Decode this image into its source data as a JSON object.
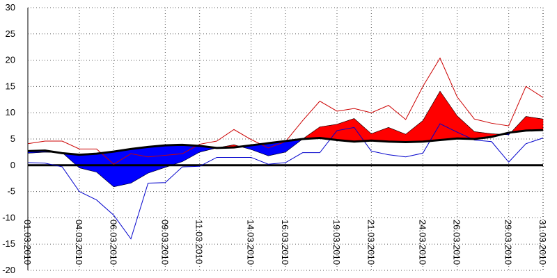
{
  "chart_data": {
    "type": "line",
    "title": "",
    "xlabel": "",
    "ylabel": "",
    "ylim": [
      -20,
      30
    ],
    "grid": true,
    "y_ticks": [
      -20,
      -15,
      -10,
      -5,
      0,
      5,
      10,
      15,
      20,
      25,
      30
    ],
    "x_tick_labels": [
      "01.03.2010",
      "04.03.2010",
      "06.03.2010",
      "09.03.2010",
      "11.03.2010",
      "14.03.2010",
      "16.03.2010",
      "19.03.2010",
      "21.03.2010",
      "24.03.2010",
      "26.03.2010",
      "29.03.2010",
      "31.03.2010"
    ],
    "x_tick_days": [
      1,
      4,
      6,
      9,
      11,
      14,
      16,
      19,
      21,
      24,
      26,
      29,
      31
    ],
    "days": [
      1,
      2,
      3,
      4,
      5,
      6,
      7,
      8,
      9,
      10,
      11,
      12,
      13,
      14,
      15,
      16,
      17,
      18,
      19,
      20,
      21,
      22,
      23,
      24,
      25,
      26,
      27,
      28,
      29,
      30,
      31
    ],
    "colors": {
      "above_fill": "#ff0000",
      "below_fill": "#0000ff",
      "max_line": "#cc0000",
      "min_line": "#0000cc",
      "norm_line": "#000000",
      "zero_line": "#000000",
      "grid": "#555555"
    },
    "series": [
      {
        "key": "norm",
        "values": [
          2.7,
          2.8,
          2.3,
          2.0,
          2.2,
          2.6,
          3.1,
          3.5,
          3.8,
          3.9,
          3.7,
          3.3,
          3.4,
          3.8,
          4.2,
          4.6,
          5.0,
          5.2,
          4.8,
          4.5,
          4.7,
          4.5,
          4.4,
          4.5,
          4.8,
          5.1,
          5.0,
          5.4,
          6.2,
          6.6,
          6.7
        ]
      },
      {
        "key": "mean",
        "values": [
          2.3,
          2.5,
          2.4,
          -0.5,
          -1.3,
          -4.1,
          -3.4,
          -1.5,
          -0.4,
          0.7,
          2.5,
          3.3,
          3.9,
          3.0,
          1.8,
          2.5,
          5.0,
          7.3,
          7.8,
          8.9,
          6.0,
          7.2,
          5.9,
          8.5,
          14.1,
          9.4,
          6.4,
          6.0,
          5.8,
          9.3,
          8.8
        ]
      },
      {
        "key": "max",
        "values": [
          4.1,
          4.6,
          4.6,
          3.1,
          3.1,
          0.2,
          2.2,
          1.6,
          1.9,
          2.2,
          4.0,
          4.6,
          6.8,
          4.9,
          3.3,
          4.5,
          8.5,
          12.2,
          10.3,
          10.8,
          10.0,
          11.4,
          8.7,
          15.0,
          20.4,
          13.0,
          8.8,
          8.0,
          7.5,
          15.0,
          12.9
        ]
      },
      {
        "key": "min",
        "values": [
          0.5,
          0.4,
          -0.3,
          -5.0,
          -6.6,
          -9.5,
          -14.0,
          -3.4,
          -3.3,
          -0.3,
          -0.2,
          1.5,
          1.5,
          1.5,
          0.2,
          0.5,
          2.4,
          2.4,
          6.6,
          7.2,
          2.7,
          2.0,
          1.6,
          2.3,
          7.9,
          6.3,
          4.8,
          4.5,
          0.6,
          4.1,
          5.2
        ]
      }
    ]
  }
}
